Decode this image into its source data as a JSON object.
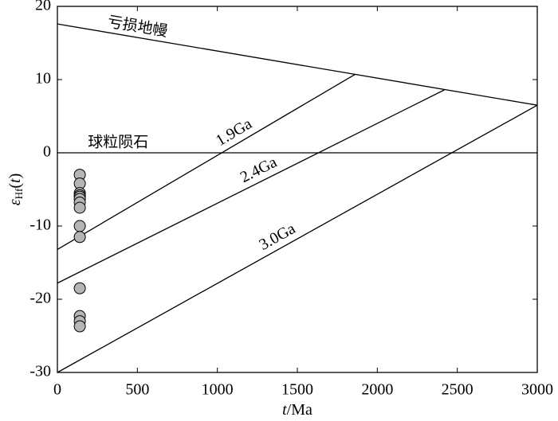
{
  "chart_data": {
    "type": "scatter",
    "xlabel_parts": [
      "t",
      "/Ma"
    ],
    "ylabel_parts": [
      "ε",
      "Hf",
      "(",
      "t",
      ")"
    ],
    "xlim": [
      0,
      3000
    ],
    "xticks": [
      0,
      500,
      1000,
      1500,
      2000,
      2500,
      3000
    ],
    "ylim": [
      -30,
      20
    ],
    "yticks": [
      -30,
      -20,
      -10,
      0,
      10,
      20
    ],
    "points": {
      "color": "#b5b5b5",
      "x": [
        140,
        140,
        140,
        140,
        140,
        140,
        140,
        140,
        140,
        140,
        140,
        140,
        140,
        140
      ],
      "y": [
        -3,
        -4.2,
        -5.5,
        -5.8,
        -6,
        -6.3,
        -6.8,
        -7.5,
        -10,
        -11.5,
        -18.5,
        -22.3,
        -23,
        -23.7
      ]
    },
    "lines": [
      {
        "label": "亏损地幔",
        "x": [
          0,
          3000
        ],
        "y": [
          17.6,
          6.5
        ]
      },
      {
        "label": "球粒陨石",
        "x": [
          0,
          3000
        ],
        "y": [
          0,
          0
        ]
      },
      {
        "label": "1.9Ga",
        "x": [
          0,
          1860
        ],
        "y": [
          -13.2,
          10.7
        ]
      },
      {
        "label": "2.4Ga",
        "x": [
          0,
          2420
        ],
        "y": [
          -17.8,
          8.6
        ]
      },
      {
        "label": "3.0Ga",
        "x": [
          0,
          3000
        ],
        "y": [
          -30,
          6.5
        ]
      }
    ]
  }
}
